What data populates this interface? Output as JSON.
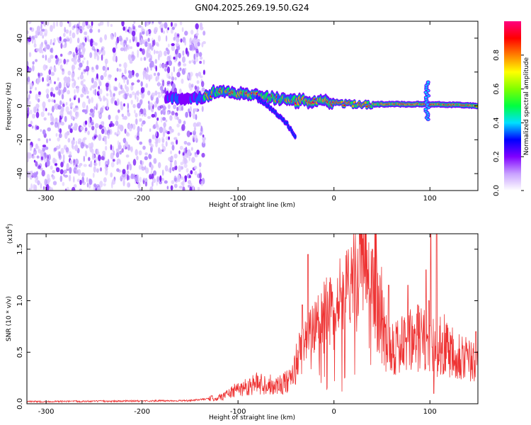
{
  "title": "GN04.2025.269.19.50.G24",
  "chart_data": [
    {
      "type": "heatmap",
      "name": "spectrogram",
      "xlabel": "Height of straight line (km)",
      "ylabel": "Frequency (Hz)",
      "xlim": [
        -320,
        150
      ],
      "ylim": [
        -50,
        50
      ],
      "x_ticks": [
        -300,
        -200,
        -100,
        0,
        100
      ],
      "y_ticks": [
        -40,
        -20,
        0,
        20,
        40
      ],
      "noise_region_x": [
        -320,
        -135
      ],
      "ridge": [
        {
          "x": -170,
          "y": 5
        },
        {
          "x": -140,
          "y": 4
        },
        {
          "x": -120,
          "y": 9
        },
        {
          "x": -100,
          "y": 7
        },
        {
          "x": -80,
          "y": 6
        },
        {
          "x": -60,
          "y": 4
        },
        {
          "x": -40,
          "y": 3
        },
        {
          "x": -20,
          "y": 3
        },
        {
          "x": 0,
          "y": 2
        },
        {
          "x": 20,
          "y": 1
        },
        {
          "x": 50,
          "y": 1
        },
        {
          "x": 80,
          "y": 1
        },
        {
          "x": 95,
          "y": 1
        },
        {
          "x": 110,
          "y": 1
        },
        {
          "x": 150,
          "y": 0
        }
      ],
      "branch": [
        {
          "x": -80,
          "y": 5
        },
        {
          "x": -65,
          "y": -2
        },
        {
          "x": -50,
          "y": -10
        },
        {
          "x": -40,
          "y": -18
        }
      ]
    },
    {
      "type": "colorbar",
      "name": "amplitude-colorbar",
      "label": "Normalized spectral amplitude",
      "range": [
        0,
        1
      ],
      "ticks": [
        0.0,
        0.2,
        0.4,
        0.6,
        0.8
      ],
      "tick_labels": [
        "0.0",
        "0.2",
        "0.4",
        "0.6",
        "0.8"
      ],
      "colors": [
        "#ffffff",
        "#c8a0ff",
        "#8000ff",
        "#0000ff",
        "#00e0ff",
        "#00ff40",
        "#80ff00",
        "#ffff00",
        "#ff8000",
        "#ff0000",
        "#ff0080"
      ]
    },
    {
      "type": "line",
      "name": "snr-line",
      "xlabel": "Height of straight line (km)",
      "ylabel": "SNR (10 * v/v)",
      "y_multiplier": "(x10",
      "y_multiplier_exp": "4",
      "y_multiplier_close": ")",
      "xlim": [
        -320,
        150
      ],
      "ylim": [
        0,
        1.65
      ],
      "x_ticks": [
        -300,
        -200,
        -100,
        0,
        100
      ],
      "y_ticks": [
        0,
        0.5,
        1.0,
        1.5
      ],
      "y_tick_labels": [
        "0.0",
        "0.5",
        "1.0",
        "1.5"
      ],
      "color": "#ee3333",
      "envelope": [
        {
          "x": -320,
          "y": 0.02
        },
        {
          "x": -150,
          "y": 0.03
        },
        {
          "x": -120,
          "y": 0.06
        },
        {
          "x": -100,
          "y": 0.14
        },
        {
          "x": -80,
          "y": 0.2
        },
        {
          "x": -60,
          "y": 0.18
        },
        {
          "x": -45,
          "y": 0.22
        },
        {
          "x": -35,
          "y": 0.5
        },
        {
          "x": -25,
          "y": 0.7
        },
        {
          "x": -10,
          "y": 0.9
        },
        {
          "x": 10,
          "y": 1.1
        },
        {
          "x": 25,
          "y": 1.3
        },
        {
          "x": 38,
          "y": 1.45
        },
        {
          "x": 45,
          "y": 1.1
        },
        {
          "x": 55,
          "y": 0.6
        },
        {
          "x": 70,
          "y": 0.55
        },
        {
          "x": 90,
          "y": 0.65
        },
        {
          "x": 100,
          "y": 0.5
        },
        {
          "x": 110,
          "y": 0.6
        },
        {
          "x": 130,
          "y": 0.5
        },
        {
          "x": 150,
          "y": 0.35
        }
      ],
      "spikes": [
        {
          "x": -27,
          "y": 1.45
        },
        {
          "x": -33,
          "y": 0.96
        },
        {
          "x": 40,
          "y": 1.5
        },
        {
          "x": 57,
          "y": 1.15
        },
        {
          "x": 77,
          "y": 1.15
        },
        {
          "x": 96,
          "y": 1.3
        },
        {
          "x": 99,
          "y": 1.0
        },
        {
          "x": 101,
          "y": 1.65
        },
        {
          "x": 104,
          "y": 0.1
        },
        {
          "x": 107,
          "y": 1.65
        },
        {
          "x": 148,
          "y": 0.7
        }
      ]
    }
  ]
}
